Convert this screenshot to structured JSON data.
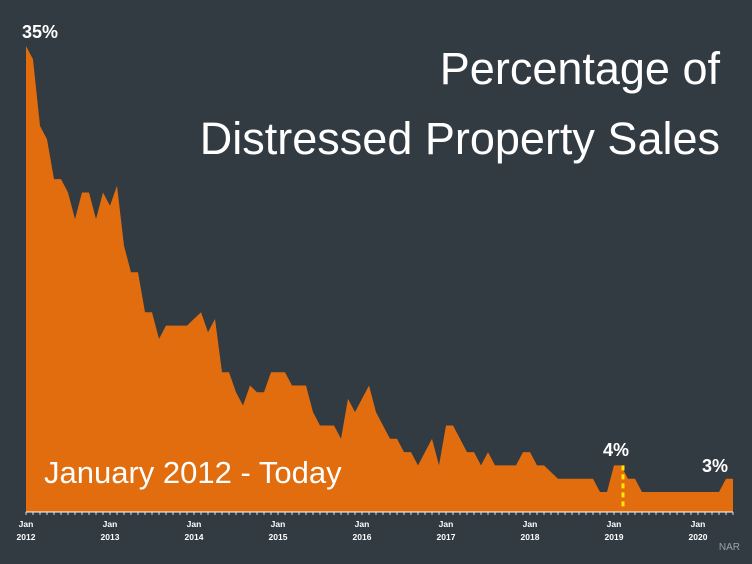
{
  "title_line1": "Percentage of",
  "title_line2": "Distressed Property Sales",
  "subtitle": "January 2012 - Today",
  "source": "NAR",
  "callouts": {
    "start": "35%",
    "mid_2019": "4%",
    "end": "3%"
  },
  "colors": {
    "background": "#323a42",
    "area": "#e26d0e",
    "highlight": "#ffe800"
  },
  "chart_data": {
    "type": "area",
    "x_unit": "month",
    "start": "2012-01",
    "ylim": [
      0,
      35
    ],
    "grid": false,
    "x_ticks": [
      {
        "month": 0,
        "label1": "Jan",
        "label2": "2012"
      },
      {
        "month": 12,
        "label1": "Jan",
        "label2": "2013"
      },
      {
        "month": 24,
        "label1": "Jan",
        "label2": "2014"
      },
      {
        "month": 36,
        "label1": "Jan",
        "label2": "2015"
      },
      {
        "month": 48,
        "label1": "Jan",
        "label2": "2016"
      },
      {
        "month": 60,
        "label1": "Jan",
        "label2": "2017"
      },
      {
        "month": 72,
        "label1": "Jan",
        "label2": "2018"
      },
      {
        "month": 84,
        "label1": "Jan",
        "label2": "2019"
      },
      {
        "month": 96,
        "label1": "Jan",
        "label2": "2020"
      }
    ],
    "highlight_month": 85,
    "values": [
      35,
      34,
      29,
      28,
      25,
      25,
      24,
      22,
      24,
      24,
      22,
      24,
      23,
      24.5,
      20,
      18,
      18,
      15,
      15,
      13,
      14,
      14,
      14,
      14,
      14.5,
      15,
      13.5,
      14.5,
      10.5,
      10.5,
      9,
      8,
      9.5,
      9,
      9,
      10.5,
      10.5,
      10.5,
      9.5,
      9.5,
      9.5,
      7.5,
      6.5,
      6.5,
      6.5,
      5.5,
      8.5,
      7.5,
      8.5,
      9.5,
      7.5,
      6.5,
      5.5,
      5.5,
      4.5,
      4.5,
      3.5,
      4.5,
      5.5,
      3.5,
      6.5,
      6.5,
      5.5,
      4.5,
      4.5,
      3.5,
      4.5,
      3.5,
      3.5,
      3.5,
      3.5,
      4.5,
      4.5,
      3.5,
      3.5,
      3,
      2.5,
      2.5,
      2.5,
      2.5,
      2.5,
      2.5,
      1.5,
      1.5,
      3.5,
      3.5,
      2.5,
      2.5,
      1.5,
      1.5,
      1.5,
      1.5,
      1.5,
      1.5,
      1.5,
      1.5,
      1.5,
      1.5,
      1.5,
      1.5,
      2.5,
      2.5
    ]
  }
}
